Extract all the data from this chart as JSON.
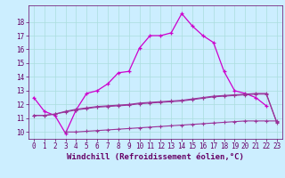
{
  "xlabel": "Windchill (Refroidissement éolien,°C)",
  "background_color": "#cceeff",
  "grid_color": "#aadddd",
  "line_color1": "#cc00cc",
  "line_color2": "#993399",
  "x": [
    0,
    1,
    2,
    3,
    4,
    5,
    6,
    7,
    8,
    9,
    10,
    11,
    12,
    13,
    14,
    15,
    16,
    17,
    18,
    19,
    20,
    21,
    22,
    23
  ],
  "line_main": [
    12.5,
    11.5,
    11.2,
    9.9,
    11.6,
    12.8,
    13.0,
    13.5,
    14.3,
    14.4,
    16.1,
    17.0,
    17.0,
    17.2,
    18.6,
    17.7,
    17.0,
    16.5,
    14.4,
    13.0,
    12.8,
    12.5,
    11.9,
    null
  ],
  "line_mid1": [
    null,
    null,
    null,
    null,
    null,
    null,
    null,
    null,
    null,
    null,
    null,
    null,
    null,
    null,
    null,
    null,
    null,
    null,
    null,
    null,
    null,
    null,
    null,
    null
  ],
  "line_flat1": [
    11.2,
    11.2,
    11.3,
    11.45,
    11.6,
    11.7,
    11.8,
    11.85,
    11.9,
    11.95,
    12.05,
    12.1,
    12.15,
    12.2,
    12.25,
    12.35,
    12.45,
    12.55,
    12.6,
    12.65,
    12.7,
    12.75,
    12.75,
    10.65
  ],
  "line_flat2": [
    11.2,
    11.2,
    11.3,
    11.5,
    11.65,
    11.75,
    11.85,
    11.9,
    11.95,
    12.0,
    12.1,
    12.15,
    12.2,
    12.25,
    12.3,
    12.4,
    12.5,
    12.6,
    12.65,
    12.7,
    12.75,
    12.8,
    12.8,
    10.7
  ],
  "line_low": [
    null,
    null,
    null,
    10.0,
    10.0,
    10.05,
    10.1,
    10.15,
    10.2,
    10.25,
    10.3,
    10.35,
    10.4,
    10.45,
    10.5,
    10.55,
    10.6,
    10.65,
    10.7,
    10.75,
    10.8,
    10.8,
    10.8,
    10.8
  ],
  "ylim": [
    9.5,
    19.2
  ],
  "yticks": [
    10,
    11,
    12,
    13,
    14,
    15,
    16,
    17,
    18
  ],
  "xticks": [
    0,
    1,
    2,
    3,
    4,
    5,
    6,
    7,
    8,
    9,
    10,
    11,
    12,
    13,
    14,
    15,
    16,
    17,
    18,
    19,
    20,
    21,
    22,
    23
  ],
  "tick_fontsize": 5.5,
  "xlabel_fontsize": 6.5
}
